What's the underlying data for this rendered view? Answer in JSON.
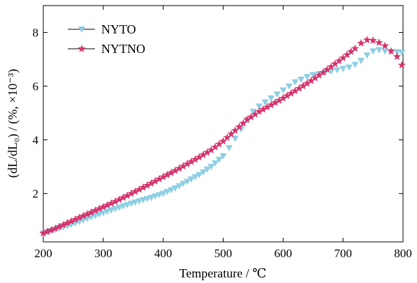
{
  "chart_data": {
    "type": "scatter",
    "xlabel": "Temperature / ℃",
    "ylabel": "(dL/dL₀) / (%, ×10⁻³)",
    "xlim": [
      200,
      800
    ],
    "ylim": [
      0.2,
      9
    ],
    "xticks": [
      200,
      300,
      400,
      500,
      600,
      700,
      800
    ],
    "yticks": [
      2,
      4,
      6,
      8
    ],
    "grid": false,
    "legend_position": "top-left",
    "series": [
      {
        "name": "NYTO",
        "color": "#8ecfe3",
        "marker": "triangle-down",
        "x": [
          200,
          220,
          240,
          260,
          280,
          300,
          320,
          340,
          360,
          380,
          400,
          420,
          440,
          460,
          480,
          500,
          510,
          520,
          530,
          540,
          550,
          560,
          570,
          580,
          590,
          600,
          610,
          620,
          630,
          640,
          650,
          660,
          670,
          680,
          690,
          700,
          710,
          720,
          730,
          740,
          750,
          760,
          770,
          780,
          790,
          798
        ],
        "y": [
          0.52,
          0.65,
          0.8,
          0.95,
          1.12,
          1.28,
          1.43,
          1.58,
          1.72,
          1.85,
          2.0,
          2.2,
          2.45,
          2.7,
          3.0,
          3.4,
          3.7,
          4.05,
          4.4,
          4.75,
          5.05,
          5.25,
          5.4,
          5.55,
          5.7,
          5.85,
          6.0,
          6.15,
          6.25,
          6.35,
          6.42,
          6.45,
          6.5,
          6.55,
          6.6,
          6.65,
          6.7,
          6.8,
          6.95,
          7.15,
          7.3,
          7.35,
          7.3,
          7.28,
          7.27,
          7.26
        ]
      },
      {
        "name": "NYTNO",
        "color": "#d6336c",
        "marker": "star",
        "x": [
          200,
          220,
          240,
          260,
          280,
          300,
          320,
          340,
          360,
          380,
          400,
          420,
          440,
          460,
          480,
          500,
          520,
          540,
          560,
          580,
          600,
          620,
          640,
          660,
          680,
          700,
          720,
          730,
          740,
          750,
          760,
          770,
          780,
          790,
          798
        ],
        "y": [
          0.52,
          0.7,
          0.9,
          1.1,
          1.3,
          1.5,
          1.7,
          1.92,
          2.15,
          2.38,
          2.62,
          2.85,
          3.1,
          3.35,
          3.62,
          3.95,
          4.35,
          4.75,
          5.05,
          5.3,
          5.55,
          5.82,
          6.1,
          6.4,
          6.72,
          7.05,
          7.4,
          7.6,
          7.72,
          7.7,
          7.62,
          7.5,
          7.3,
          7.1,
          6.78
        ]
      }
    ]
  }
}
